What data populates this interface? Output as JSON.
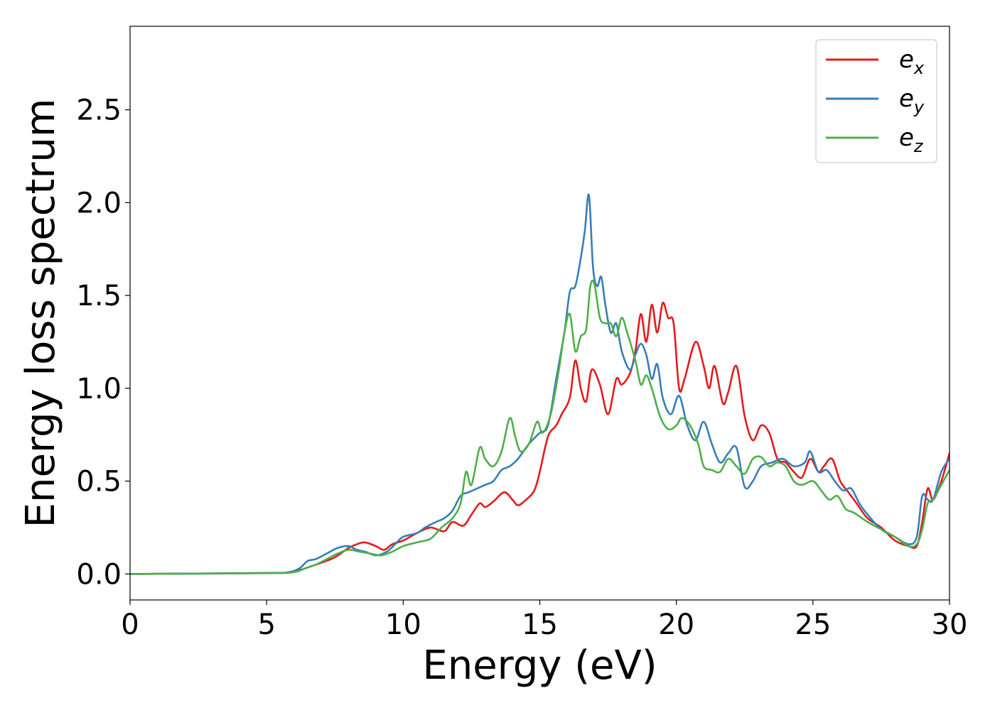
{
  "chart_data": {
    "type": "line",
    "xlabel": "Energy (eV)",
    "ylabel": "Energy loss spectrum",
    "xlim": [
      0,
      30
    ],
    "ylim": [
      -0.14,
      2.95
    ],
    "xticks": [
      "0",
      "5",
      "10",
      "15",
      "20",
      "25",
      "30"
    ],
    "yticks": [
      "0.0",
      "0.5",
      "1.0",
      "1.5",
      "2.0",
      "2.5"
    ],
    "grid": false,
    "legend_position": "top-right",
    "series": [
      {
        "name": "e_x",
        "label_main": "e",
        "label_sub": "x",
        "color": "#e41a1c",
        "x": [
          0,
          5,
          5.8,
          6.2,
          6.6,
          7.0,
          7.5,
          8.0,
          8.3,
          8.6,
          9.0,
          9.3,
          9.6,
          10.0,
          10.5,
          11.0,
          11.5,
          11.8,
          12.2,
          12.5,
          12.8,
          13.0,
          13.3,
          13.7,
          14.0,
          14.2,
          14.5,
          14.8,
          15.0,
          15.3,
          15.6,
          15.8,
          16.1,
          16.3,
          16.5,
          16.7,
          16.9,
          17.2,
          17.5,
          17.8,
          18.0,
          18.3,
          18.5,
          18.7,
          18.9,
          19.1,
          19.3,
          19.5,
          19.7,
          19.9,
          20.1,
          20.3,
          20.7,
          21.0,
          21.2,
          21.4,
          21.7,
          21.9,
          22.2,
          22.5,
          22.8,
          23.1,
          23.4,
          23.7,
          24.0,
          24.3,
          24.6,
          24.9,
          25.2,
          25.4,
          25.7,
          26.0,
          26.3,
          26.6,
          27.0,
          27.5,
          28.0,
          28.5,
          28.8,
          29.0,
          29.2,
          29.4,
          29.7,
          30
        ],
        "y": [
          0,
          0.005,
          0.008,
          0.02,
          0.04,
          0.06,
          0.09,
          0.14,
          0.16,
          0.17,
          0.15,
          0.13,
          0.16,
          0.18,
          0.22,
          0.25,
          0.23,
          0.28,
          0.26,
          0.32,
          0.38,
          0.36,
          0.39,
          0.44,
          0.4,
          0.37,
          0.4,
          0.45,
          0.55,
          0.74,
          0.8,
          0.86,
          0.95,
          1.15,
          1.0,
          0.93,
          1.1,
          1.02,
          0.86,
          1.05,
          1.02,
          1.08,
          1.2,
          1.4,
          1.25,
          1.45,
          1.3,
          1.46,
          1.38,
          1.35,
          1.0,
          1.05,
          1.25,
          1.12,
          1.0,
          1.12,
          0.92,
          0.98,
          1.12,
          0.85,
          0.72,
          0.8,
          0.76,
          0.62,
          0.6,
          0.55,
          0.52,
          0.62,
          0.55,
          0.58,
          0.62,
          0.5,
          0.44,
          0.38,
          0.3,
          0.25,
          0.18,
          0.15,
          0.15,
          0.28,
          0.46,
          0.4,
          0.5,
          0.65
        ]
      },
      {
        "name": "e_y",
        "label_main": "e",
        "label_sub": "y",
        "color": "#377eb8",
        "x": [
          0,
          5,
          5.8,
          6.2,
          6.5,
          6.8,
          7.2,
          7.6,
          8.0,
          8.3,
          8.6,
          9.0,
          9.4,
          9.7,
          10.0,
          10.5,
          10.8,
          11.2,
          11.5,
          11.8,
          12.1,
          12.4,
          12.7,
          13.0,
          13.3,
          13.6,
          13.9,
          14.2,
          14.6,
          15.0,
          15.3,
          15.6,
          15.9,
          16.1,
          16.3,
          16.5,
          16.65,
          16.8,
          16.95,
          17.1,
          17.25,
          17.4,
          17.6,
          17.8,
          18.0,
          18.3,
          18.5,
          18.7,
          18.9,
          19.1,
          19.3,
          19.5,
          19.8,
          20.1,
          20.4,
          20.7,
          21.0,
          21.3,
          21.6,
          21.9,
          22.2,
          22.5,
          22.8,
          23.1,
          23.5,
          23.9,
          24.3,
          24.7,
          24.9,
          25.2,
          25.5,
          25.8,
          26.1,
          26.4,
          26.7,
          27.0,
          27.5,
          28.0,
          28.5,
          28.8,
          29.0,
          29.2,
          29.4,
          29.7,
          30
        ],
        "y": [
          0,
          0.005,
          0.01,
          0.03,
          0.07,
          0.08,
          0.11,
          0.14,
          0.15,
          0.13,
          0.12,
          0.1,
          0.12,
          0.16,
          0.2,
          0.22,
          0.25,
          0.28,
          0.3,
          0.34,
          0.42,
          0.44,
          0.46,
          0.48,
          0.5,
          0.56,
          0.58,
          0.62,
          0.7,
          0.76,
          0.8,
          1.05,
          1.3,
          1.52,
          1.55,
          1.7,
          1.85,
          2.04,
          1.65,
          1.55,
          1.6,
          1.45,
          1.3,
          1.35,
          1.2,
          1.1,
          1.18,
          1.24,
          1.18,
          1.05,
          1.13,
          0.95,
          0.86,
          0.96,
          0.8,
          0.72,
          0.82,
          0.7,
          0.6,
          0.65,
          0.68,
          0.47,
          0.5,
          0.58,
          0.6,
          0.62,
          0.58,
          0.6,
          0.66,
          0.55,
          0.56,
          0.5,
          0.45,
          0.46,
          0.38,
          0.32,
          0.24,
          0.2,
          0.16,
          0.2,
          0.42,
          0.4,
          0.4,
          0.55,
          0.62
        ]
      },
      {
        "name": "e_z",
        "label_main": "e",
        "label_sub": "z",
        "color": "#4daf4a",
        "x": [
          0,
          5,
          6.0,
          6.4,
          6.8,
          7.2,
          7.6,
          8.0,
          8.4,
          8.8,
          9.2,
          9.6,
          10.0,
          10.5,
          11.0,
          11.4,
          11.8,
          12.1,
          12.3,
          12.5,
          12.8,
          13.0,
          13.3,
          13.6,
          13.9,
          14.1,
          14.3,
          14.6,
          14.9,
          15.1,
          15.4,
          15.7,
          15.9,
          16.1,
          16.3,
          16.5,
          16.7,
          16.85,
          17.0,
          17.2,
          17.4,
          17.6,
          17.8,
          18.0,
          18.2,
          18.5,
          18.7,
          18.9,
          19.1,
          19.4,
          19.7,
          20.0,
          20.2,
          20.5,
          20.8,
          21.0,
          21.3,
          21.6,
          21.9,
          22.2,
          22.5,
          22.8,
          23.1,
          23.4,
          23.7,
          24.0,
          24.3,
          24.6,
          25.0,
          25.3,
          25.6,
          25.9,
          26.2,
          26.5,
          27.0,
          27.5,
          28.0,
          28.5,
          28.8,
          29.0,
          29.2,
          29.4,
          29.7,
          30
        ],
        "y": [
          0,
          0.004,
          0.01,
          0.03,
          0.05,
          0.08,
          0.11,
          0.13,
          0.12,
          0.11,
          0.1,
          0.12,
          0.15,
          0.17,
          0.19,
          0.25,
          0.3,
          0.38,
          0.55,
          0.48,
          0.68,
          0.62,
          0.58,
          0.66,
          0.84,
          0.74,
          0.66,
          0.7,
          0.82,
          0.76,
          0.86,
          1.1,
          1.3,
          1.4,
          1.2,
          1.28,
          1.32,
          1.55,
          1.56,
          1.38,
          1.35,
          1.35,
          1.28,
          1.38,
          1.3,
          1.15,
          1.02,
          1.07,
          1.0,
          0.85,
          0.78,
          0.8,
          0.84,
          0.8,
          0.7,
          0.58,
          0.56,
          0.55,
          0.62,
          0.58,
          0.54,
          0.62,
          0.63,
          0.58,
          0.6,
          0.58,
          0.5,
          0.48,
          0.5,
          0.45,
          0.4,
          0.42,
          0.35,
          0.33,
          0.28,
          0.24,
          0.2,
          0.15,
          0.16,
          0.24,
          0.38,
          0.4,
          0.48,
          0.56
        ]
      }
    ]
  }
}
